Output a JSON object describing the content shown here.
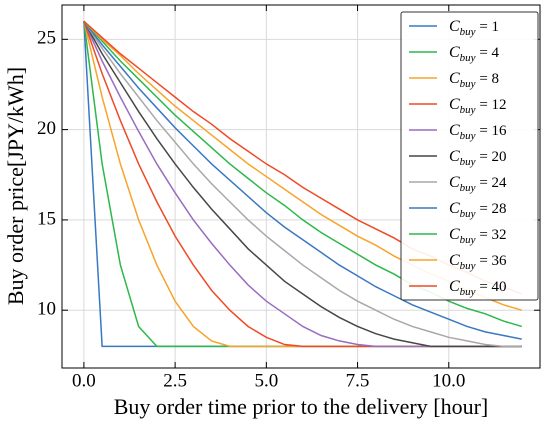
{
  "chart_data": {
    "type": "line",
    "x_label": "Buy order time prior to the delivery [hour]",
    "y_label": "Buy order price[JPY/kWh]",
    "x": [
      0,
      0.5,
      1,
      1.5,
      2,
      2.5,
      3,
      3.5,
      4,
      4.5,
      5,
      5.5,
      6,
      6.5,
      7,
      7.5,
      8,
      8.5,
      9,
      9.5,
      10,
      10.5,
      11,
      11.5,
      12
    ],
    "series": [
      {
        "name": "Cbuy = 1",
        "color": "#3a78c2",
        "values": [
          26,
          8,
          8,
          8,
          8,
          8,
          8,
          8,
          8,
          8,
          8,
          8,
          8,
          8,
          8,
          8,
          8,
          8,
          8,
          8,
          8,
          8,
          8,
          8,
          8
        ]
      },
      {
        "name": "Cbuy = 4",
        "color": "#2cb84a",
        "values": [
          26,
          18.1,
          12.5,
          9.1,
          8,
          8,
          8,
          8,
          8,
          8,
          8,
          8,
          8,
          8,
          8,
          8,
          8,
          8,
          8,
          8,
          8,
          8,
          8,
          8,
          8
        ]
      },
      {
        "name": "Cbuy = 8",
        "color": "#f8a32a",
        "values": [
          26,
          21.8,
          18.1,
          15.0,
          12.5,
          10.5,
          9.1,
          8.3,
          8,
          8,
          8,
          8,
          8,
          8,
          8,
          8,
          8,
          8,
          8,
          8,
          8,
          8,
          8,
          8,
          8
        ]
      },
      {
        "name": "Cbuy = 12",
        "color": "#ef4a26",
        "values": [
          26,
          23.1,
          20.5,
          18.1,
          16,
          14.1,
          12.5,
          11.1,
          10,
          9.1,
          8.5,
          8.1,
          8,
          8,
          8,
          8,
          8,
          8,
          8,
          8,
          8,
          8,
          8,
          8,
          8
        ]
      },
      {
        "name": "Cbuy = 16",
        "color": "#9a6cbf",
        "values": [
          26,
          23.8,
          21.8,
          19.9,
          18.1,
          16.5,
          15.0,
          13.7,
          12.5,
          11.4,
          10.5,
          9.8,
          9.1,
          8.6,
          8.3,
          8.1,
          8,
          8,
          8,
          8,
          8,
          8,
          8,
          8,
          8
        ]
      },
      {
        "name": "Cbuy = 20",
        "color": "#474747",
        "values": [
          26,
          24.2,
          22.6,
          21.0,
          19.5,
          18.1,
          16.8,
          15.6,
          14.5,
          13.4,
          12.5,
          11.6,
          10.9,
          10.2,
          9.6,
          9.1,
          8.7,
          8.4,
          8.2,
          8.0,
          8,
          8,
          8,
          8,
          8
        ]
      },
      {
        "name": "Cbuy = 24",
        "color": "#a8a8a8",
        "values": [
          26,
          24.5,
          23.1,
          21.8,
          20.5,
          19.3,
          18.1,
          17.0,
          16,
          15.0,
          14.1,
          13.3,
          12.5,
          11.8,
          11.1,
          10.5,
          10,
          9.5,
          9.1,
          8.8,
          8.5,
          8.3,
          8.1,
          8.0,
          8
        ]
      },
      {
        "name": "Cbuy = 28",
        "color": "#3a78c2",
        "values": [
          26,
          24.7,
          23.5,
          22.3,
          21.2,
          20.1,
          19.1,
          18.1,
          17.2,
          16.3,
          15.4,
          14.6,
          13.9,
          13.2,
          12.5,
          11.9,
          11.3,
          10.8,
          10.3,
          9.9,
          9.5,
          9.1,
          8.8,
          8.6,
          8.4
        ]
      },
      {
        "name": "Cbuy = 32",
        "color": "#2cb84a",
        "values": [
          26,
          24.9,
          23.8,
          22.8,
          21.8,
          20.8,
          19.9,
          19.0,
          18.1,
          17.3,
          16.5,
          15.8,
          15.0,
          14.3,
          13.7,
          13.1,
          12.5,
          12.0,
          11.4,
          11.0,
          10.5,
          10.1,
          9.8,
          9.4,
          9.1
        ]
      },
      {
        "name": "Cbuy = 36",
        "color": "#f8a32a",
        "values": [
          26,
          25.0,
          24.1,
          23.1,
          22.2,
          21.3,
          20.5,
          19.7,
          18.9,
          18.1,
          17.4,
          16.7,
          16,
          15.3,
          14.7,
          14.1,
          13.6,
          13.0,
          12.5,
          12.0,
          11.6,
          11.1,
          10.7,
          10.3,
          10
        ]
      },
      {
        "name": "Cbuy = 40",
        "color": "#ef4a26",
        "values": [
          26,
          25.1,
          24.2,
          23.4,
          22.6,
          21.8,
          21.0,
          20.3,
          19.5,
          18.8,
          18.1,
          17.5,
          16.8,
          16.2,
          15.6,
          15.0,
          14.5,
          14.0,
          13.4,
          13.0,
          12.5,
          12.1,
          11.6,
          11.3,
          10.9
        ]
      }
    ],
    "xlim": [
      -0.6,
      12.5
    ],
    "ylim": [
      6.8,
      26.9
    ],
    "xticks": [
      {
        "value": 0,
        "label": "0.0"
      },
      2.5,
      {
        "value": 5,
        "label": "5.0"
      },
      7.5,
      {
        "value": 10,
        "label": "10.0"
      }
    ],
    "yticks": [
      10,
      15,
      20,
      25
    ],
    "grid": true,
    "legend": "upper right"
  }
}
